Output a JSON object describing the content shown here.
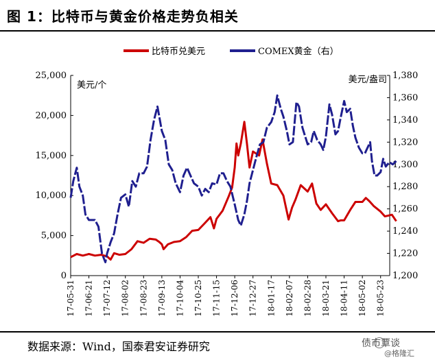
{
  "header": {
    "title": "图 1：比特币与黄金价格走势负相关"
  },
  "footer": {
    "source": "数据来源：Wind，国泰君安证券研究"
  },
  "watermark": {
    "text": "债市覃谈",
    "subtext": "@格隆汇"
  },
  "chart_data": {
    "type": "line",
    "left_unit": "美元/个",
    "right_unit": "美元/盎司",
    "y_left": {
      "ylim": [
        0,
        25000
      ],
      "ticks": [
        "0",
        "5,000",
        "10,000",
        "15,000",
        "20,000",
        "25,000"
      ]
    },
    "y_right": {
      "ylim": [
        1200,
        1380
      ],
      "ticks": [
        "1,200",
        "1,220",
        "1,240",
        "1,260",
        "1,280",
        "1,300",
        "1,320",
        "1,340",
        "1,360",
        "1,380"
      ]
    },
    "x_ticks": [
      "17-05-31",
      "17-06-21",
      "17-07-12",
      "17-08-02",
      "17-08-23",
      "17-09-13",
      "17-10-04",
      "17-10-25",
      "17-11-15",
      "17-12-06",
      "17-12-27",
      "18-01-17",
      "18-02-07",
      "18-02-28",
      "18-03-21",
      "18-04-11",
      "18-05-02",
      "18-05-23"
    ],
    "legend": {
      "position": "top"
    },
    "series": [
      {
        "name": "比特币兑美元",
        "axis": "left",
        "color": "#cc0000",
        "points": [
          [
            "17-05-31",
            2300
          ],
          [
            "17-06-07",
            2700
          ],
          [
            "17-06-14",
            2500
          ],
          [
            "17-06-21",
            2700
          ],
          [
            "17-06-28",
            2500
          ],
          [
            "17-07-05",
            2600
          ],
          [
            "17-07-12",
            2400
          ],
          [
            "17-07-16",
            2000
          ],
          [
            "17-07-20",
            2800
          ],
          [
            "17-07-26",
            2600
          ],
          [
            "17-08-02",
            2700
          ],
          [
            "17-08-09",
            3300
          ],
          [
            "17-08-16",
            4300
          ],
          [
            "17-08-23",
            4100
          ],
          [
            "17-08-30",
            4600
          ],
          [
            "17-09-06",
            4500
          ],
          [
            "17-09-10",
            4200
          ],
          [
            "17-09-13",
            3900
          ],
          [
            "17-09-15",
            3300
          ],
          [
            "17-09-20",
            3900
          ],
          [
            "17-09-27",
            4200
          ],
          [
            "17-10-04",
            4300
          ],
          [
            "17-10-11",
            4800
          ],
          [
            "17-10-18",
            5600
          ],
          [
            "17-10-25",
            5700
          ],
          [
            "17-11-01",
            6500
          ],
          [
            "17-11-08",
            7300
          ],
          [
            "17-11-12",
            5900
          ],
          [
            "17-11-15",
            7100
          ],
          [
            "17-11-22",
            8100
          ],
          [
            "17-11-29",
            9900
          ],
          [
            "17-12-03",
            11000
          ],
          [
            "17-12-06",
            13500
          ],
          [
            "17-12-08",
            16500
          ],
          [
            "17-12-10",
            15000
          ],
          [
            "17-12-13",
            16500
          ],
          [
            "17-12-17",
            19200
          ],
          [
            "17-12-20",
            16500
          ],
          [
            "17-12-23",
            13500
          ],
          [
            "17-12-27",
            15500
          ],
          [
            "18-01-03",
            15000
          ],
          [
            "18-01-07",
            17000
          ],
          [
            "18-01-12",
            14000
          ],
          [
            "18-01-17",
            11500
          ],
          [
            "18-01-24",
            11300
          ],
          [
            "18-01-31",
            10000
          ],
          [
            "18-02-06",
            7000
          ],
          [
            "18-02-10",
            8500
          ],
          [
            "18-02-14",
            9500
          ],
          [
            "18-02-20",
            11300
          ],
          [
            "18-02-28",
            10500
          ],
          [
            "18-03-05",
            11500
          ],
          [
            "18-03-10",
            9000
          ],
          [
            "18-03-15",
            8200
          ],
          [
            "18-03-21",
            8900
          ],
          [
            "18-03-28",
            7800
          ],
          [
            "18-04-04",
            6800
          ],
          [
            "18-04-07",
            6900
          ],
          [
            "18-04-11",
            6900
          ],
          [
            "18-04-18",
            8200
          ],
          [
            "18-04-24",
            9200
          ],
          [
            "18-05-02",
            9200
          ],
          [
            "18-05-06",
            9700
          ],
          [
            "18-05-10",
            9300
          ],
          [
            "18-05-15",
            8700
          ],
          [
            "18-05-23",
            8000
          ],
          [
            "18-05-28",
            7400
          ],
          [
            "18-06-01",
            7500
          ],
          [
            "18-06-05",
            7600
          ],
          [
            "18-06-10",
            6800
          ]
        ]
      },
      {
        "name": "COMEX黄金（右）",
        "axis": "right",
        "color": "#1f1f8f",
        "points": [
          [
            "17-05-31",
            1270
          ],
          [
            "17-06-03",
            1285
          ],
          [
            "17-06-07",
            1297
          ],
          [
            "17-06-10",
            1280
          ],
          [
            "17-06-14",
            1272
          ],
          [
            "17-06-17",
            1255
          ],
          [
            "17-06-21",
            1250
          ],
          [
            "17-06-28",
            1250
          ],
          [
            "17-07-02",
            1244
          ],
          [
            "17-07-06",
            1220
          ],
          [
            "17-07-10",
            1212
          ],
          [
            "17-07-12",
            1220
          ],
          [
            "17-07-16",
            1230
          ],
          [
            "17-07-20",
            1238
          ],
          [
            "17-07-24",
            1255
          ],
          [
            "17-07-28",
            1270
          ],
          [
            "17-08-02",
            1273
          ],
          [
            "17-08-06",
            1262
          ],
          [
            "17-08-10",
            1285
          ],
          [
            "17-08-14",
            1280
          ],
          [
            "17-08-18",
            1292
          ],
          [
            "17-08-23",
            1292
          ],
          [
            "17-08-27",
            1298
          ],
          [
            "17-08-31",
            1322
          ],
          [
            "17-09-04",
            1340
          ],
          [
            "17-09-08",
            1352
          ],
          [
            "17-09-13",
            1330
          ],
          [
            "17-09-17",
            1322
          ],
          [
            "17-09-21",
            1300
          ],
          [
            "17-09-25",
            1295
          ],
          [
            "17-09-29",
            1283
          ],
          [
            "17-10-04",
            1275
          ],
          [
            "17-10-08",
            1290
          ],
          [
            "17-10-12",
            1297
          ],
          [
            "17-10-16",
            1290
          ],
          [
            "17-10-20",
            1283
          ],
          [
            "17-10-25",
            1280
          ],
          [
            "17-10-29",
            1272
          ],
          [
            "17-11-02",
            1278
          ],
          [
            "17-11-06",
            1275
          ],
          [
            "17-11-10",
            1283
          ],
          [
            "17-11-15",
            1282
          ],
          [
            "17-11-19",
            1292
          ],
          [
            "17-11-23",
            1292
          ],
          [
            "17-11-27",
            1285
          ],
          [
            "17-12-01",
            1280
          ],
          [
            "17-12-06",
            1264
          ],
          [
            "17-12-10",
            1250
          ],
          [
            "17-12-13",
            1245
          ],
          [
            "17-12-17",
            1255
          ],
          [
            "17-12-20",
            1267
          ],
          [
            "17-12-23",
            1283
          ],
          [
            "17-12-27",
            1295
          ],
          [
            "17-12-31",
            1307
          ],
          [
            "18-01-04",
            1318
          ],
          [
            "18-01-08",
            1320
          ],
          [
            "18-01-12",
            1333
          ],
          [
            "18-01-17",
            1338
          ],
          [
            "18-01-21",
            1347
          ],
          [
            "18-01-24",
            1362
          ],
          [
            "18-01-28",
            1350
          ],
          [
            "18-01-31",
            1343
          ],
          [
            "18-02-04",
            1330
          ],
          [
            "18-02-07",
            1318
          ],
          [
            "18-02-11",
            1320
          ],
          [
            "18-02-15",
            1356
          ],
          [
            "18-02-18",
            1352
          ],
          [
            "18-02-22",
            1333
          ],
          [
            "18-02-28",
            1318
          ],
          [
            "18-03-04",
            1320
          ],
          [
            "18-03-07",
            1330
          ],
          [
            "18-03-11",
            1322
          ],
          [
            "18-03-15",
            1318
          ],
          [
            "18-03-18",
            1313
          ],
          [
            "18-03-21",
            1325
          ],
          [
            "18-03-25",
            1354
          ],
          [
            "18-03-28",
            1345
          ],
          [
            "18-04-01",
            1327
          ],
          [
            "18-04-04",
            1330
          ],
          [
            "18-04-07",
            1342
          ],
          [
            "18-04-11",
            1357
          ],
          [
            "18-04-14",
            1347
          ],
          [
            "18-04-18",
            1350
          ],
          [
            "18-04-21",
            1335
          ],
          [
            "18-04-24",
            1324
          ],
          [
            "18-04-28",
            1315
          ],
          [
            "18-05-02",
            1310
          ],
          [
            "18-05-05",
            1310
          ],
          [
            "18-05-08",
            1315
          ],
          [
            "18-05-11",
            1320
          ],
          [
            "18-05-13",
            1303
          ],
          [
            "18-05-16",
            1290
          ],
          [
            "18-05-19",
            1290
          ],
          [
            "18-05-23",
            1293
          ],
          [
            "18-05-26",
            1305
          ],
          [
            "18-05-29",
            1298
          ],
          [
            "18-06-02",
            1302
          ],
          [
            "18-06-06",
            1300
          ],
          [
            "18-06-10",
            1303
          ]
        ]
      }
    ]
  }
}
